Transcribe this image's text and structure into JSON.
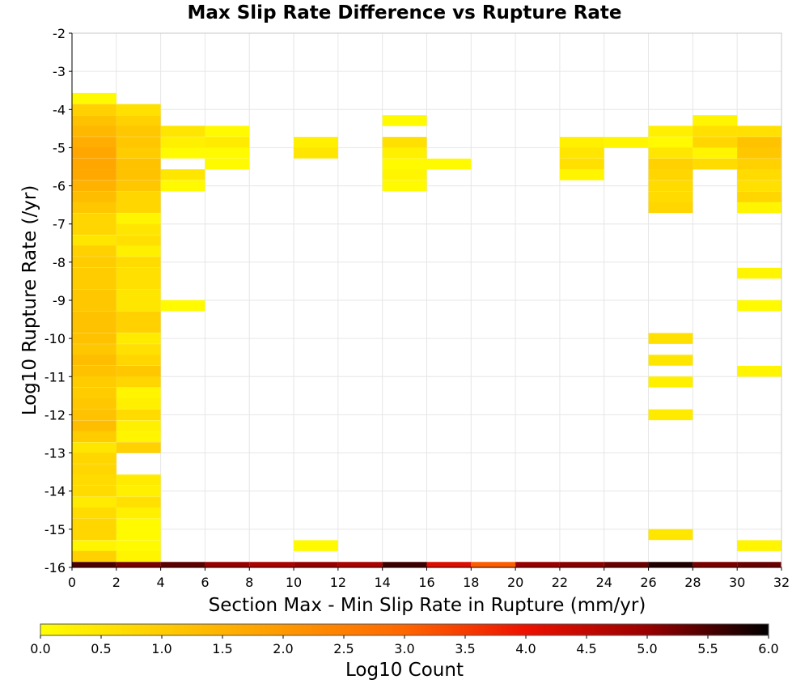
{
  "chart_data": {
    "type": "heatmap",
    "title": "Max Slip Rate Difference vs Rupture Rate",
    "xlabel": "Section Max - Min Slip Rate in Rupture (mm/yr)",
    "ylabel": "Log10 Rupture Rate (/yr)",
    "colorbar_label": "Log10 Count",
    "xlim": [
      0,
      32
    ],
    "ylim": [
      -16,
      -2
    ],
    "x_ticks": [
      "0",
      "2",
      "4",
      "6",
      "8",
      "10",
      "12",
      "14",
      "16",
      "18",
      "20",
      "22",
      "24",
      "26",
      "28",
      "30",
      "32"
    ],
    "y_ticks": [
      "-2",
      "-3",
      "-4",
      "-5",
      "-6",
      "-7",
      "-8",
      "-9",
      "-10",
      "-11",
      "-12",
      "-13",
      "-14",
      "-15",
      "-16"
    ],
    "colorbar_ticks": [
      "0.0",
      "0.5",
      "1.0",
      "1.5",
      "2.0",
      "2.5",
      "3.0",
      "3.5",
      "4.0",
      "4.5",
      "5.0",
      "5.5",
      "6.0"
    ],
    "colorbar_range": [
      0,
      6
    ],
    "colormap": [
      "#ffff00",
      "#ffcc00",
      "#ff9900",
      "#ff6600",
      "#ee1100",
      "#990000",
      "#000000"
    ],
    "grid": true,
    "bin_width": 2,
    "bin_height": 0.2857,
    "columns": [
      {
        "x": 1,
        "cells": [
          [
            -3.71,
            0.1
          ],
          [
            -4.0,
            0.9
          ],
          [
            -4.29,
            1.2
          ],
          [
            -4.57,
            1.4
          ],
          [
            -4.86,
            1.6
          ],
          [
            -5.14,
            1.75
          ],
          [
            -5.43,
            1.75
          ],
          [
            -5.71,
            1.7
          ],
          [
            -6.0,
            1.5
          ],
          [
            -6.29,
            1.3
          ],
          [
            -6.57,
            1.1
          ],
          [
            -6.86,
            0.8
          ],
          [
            -7.14,
            0.8
          ],
          [
            -7.43,
            0.5
          ],
          [
            -7.71,
            0.9
          ],
          [
            -8.0,
            1.0
          ],
          [
            -8.29,
            1.0
          ],
          [
            -8.57,
            1.0
          ],
          [
            -8.86,
            1.1
          ],
          [
            -9.14,
            1.1
          ],
          [
            -9.43,
            1.2
          ],
          [
            -9.71,
            1.2
          ],
          [
            -10.0,
            1.2
          ],
          [
            -10.29,
            1.1
          ],
          [
            -10.57,
            1.3
          ],
          [
            -10.86,
            1.2
          ],
          [
            -11.14,
            1.0
          ],
          [
            -11.43,
            1.0
          ],
          [
            -11.71,
            1.1
          ],
          [
            -12.0,
            1.2
          ],
          [
            -12.29,
            1.3
          ],
          [
            -12.57,
            1.0
          ],
          [
            -12.86,
            0.5
          ],
          [
            -13.14,
            0.8
          ],
          [
            -13.43,
            0.8
          ],
          [
            -13.71,
            0.7
          ],
          [
            -14.0,
            0.7
          ],
          [
            -14.29,
            0.4
          ],
          [
            -14.57,
            0.7
          ],
          [
            -14.86,
            0.8
          ],
          [
            -15.14,
            0.8
          ],
          [
            -15.43,
            0.2
          ],
          [
            -15.71,
            0.9
          ],
          [
            -16.0,
            5.5
          ]
        ]
      },
      {
        "x": 3,
        "cells": [
          [
            -4.0,
            0.6
          ],
          [
            -4.29,
            0.9
          ],
          [
            -4.57,
            1.1
          ],
          [
            -4.86,
            1.1
          ],
          [
            -5.14,
            1.0
          ],
          [
            -5.43,
            1.2
          ],
          [
            -5.71,
            1.2
          ],
          [
            -6.0,
            1.1
          ],
          [
            -6.29,
            0.8
          ],
          [
            -6.57,
            0.8
          ],
          [
            -6.86,
            0.2
          ],
          [
            -7.14,
            0.5
          ],
          [
            -7.43,
            0.6
          ],
          [
            -7.71,
            0.3
          ],
          [
            -8.0,
            0.7
          ],
          [
            -8.29,
            0.6
          ],
          [
            -8.57,
            0.6
          ],
          [
            -8.86,
            0.5
          ],
          [
            -9.14,
            0.5
          ],
          [
            -9.43,
            0.9
          ],
          [
            -9.71,
            0.9
          ],
          [
            -10.0,
            0.4
          ],
          [
            -10.29,
            0.6
          ],
          [
            -10.57,
            0.8
          ],
          [
            -10.86,
            1.1
          ],
          [
            -11.14,
            0.8
          ],
          [
            -11.43,
            0.2
          ],
          [
            -11.71,
            0.3
          ],
          [
            -12.0,
            0.7
          ],
          [
            -12.29,
            0.3
          ],
          [
            -12.57,
            0.2
          ],
          [
            -12.86,
            0.9
          ],
          [
            -13.71,
            0.4
          ],
          [
            -14.0,
            0.3
          ],
          [
            -14.29,
            0.6
          ],
          [
            -14.57,
            0.3
          ],
          [
            -14.86,
            0.1
          ],
          [
            -15.14,
            0.1
          ],
          [
            -15.43,
            0.1
          ],
          [
            -15.71,
            0.2
          ],
          [
            -16.0,
            5.2
          ]
        ]
      },
      {
        "x": 5,
        "cells": [
          [
            -4.57,
            0.5
          ],
          [
            -4.86,
            0.3
          ],
          [
            -5.14,
            0.1
          ],
          [
            -5.71,
            0.5
          ],
          [
            -6.0,
            0.1
          ],
          [
            -9.14,
            0.1
          ],
          [
            -16.0,
            5.4
          ]
        ]
      },
      {
        "x": 7,
        "cells": [
          [
            -4.57,
            0.1
          ],
          [
            -4.86,
            0.4
          ],
          [
            -5.14,
            0.1
          ],
          [
            -5.43,
            0.1
          ],
          [
            -16.0,
            5.0
          ]
        ]
      },
      {
        "x": 9,
        "cells": [
          [
            -16.0,
            4.8
          ]
        ]
      },
      {
        "x": 11,
        "cells": [
          [
            -4.86,
            0.3
          ],
          [
            -5.14,
            0.5
          ],
          [
            -15.43,
            0.1
          ],
          [
            -16.0,
            5.0
          ]
        ]
      },
      {
        "x": 13,
        "cells": [
          [
            -16.0,
            4.8
          ]
        ]
      },
      {
        "x": 15,
        "cells": [
          [
            -4.29,
            0.1
          ],
          [
            -4.86,
            0.6
          ],
          [
            -5.14,
            0.3
          ],
          [
            -5.43,
            0.1
          ],
          [
            -5.71,
            0.2
          ],
          [
            -6.0,
            0.1
          ],
          [
            -16.0,
            5.6
          ]
        ]
      },
      {
        "x": 17,
        "cells": [
          [
            -5.43,
            0.1
          ],
          [
            -16.0,
            4.2
          ]
        ]
      },
      {
        "x": 19,
        "cells": [
          [
            -16.0,
            3.1
          ]
        ]
      },
      {
        "x": 21,
        "cells": [
          [
            -16.0,
            5.0
          ]
        ]
      },
      {
        "x": 23,
        "cells": [
          [
            -4.86,
            0.3
          ],
          [
            -5.14,
            0.5
          ],
          [
            -5.43,
            0.6
          ],
          [
            -5.71,
            0.2
          ],
          [
            -16.0,
            5.1
          ]
        ]
      },
      {
        "x": 25,
        "cells": [
          [
            -4.86,
            0.2
          ],
          [
            -16.0,
            5.3
          ]
        ]
      },
      {
        "x": 27,
        "cells": [
          [
            -4.57,
            0.3
          ],
          [
            -4.86,
            0.1
          ],
          [
            -5.14,
            0.5
          ],
          [
            -5.43,
            0.9
          ],
          [
            -5.71,
            0.8
          ],
          [
            -6.0,
            0.7
          ],
          [
            -6.29,
            0.7
          ],
          [
            -6.57,
            0.8
          ],
          [
            -10.0,
            0.6
          ],
          [
            -10.57,
            0.5
          ],
          [
            -11.14,
            0.3
          ],
          [
            -12.0,
            0.4
          ],
          [
            -15.14,
            0.5
          ],
          [
            -16.0,
            5.8
          ]
        ]
      },
      {
        "x": 29,
        "cells": [
          [
            -4.29,
            0.2
          ],
          [
            -4.57,
            0.6
          ],
          [
            -4.86,
            0.8
          ],
          [
            -5.14,
            0.2
          ],
          [
            -5.43,
            0.7
          ],
          [
            -16.0,
            5.2
          ]
        ]
      },
      {
        "x": 31,
        "cells": [
          [
            -4.57,
            0.6
          ],
          [
            -4.86,
            1.2
          ],
          [
            -5.14,
            1.1
          ],
          [
            -5.43,
            0.9
          ],
          [
            -5.71,
            0.7
          ],
          [
            -6.0,
            0.6
          ],
          [
            -6.29,
            0.8
          ],
          [
            -6.57,
            0.2
          ],
          [
            -8.29,
            0.2
          ],
          [
            -9.14,
            0.1
          ],
          [
            -10.86,
            0.2
          ],
          [
            -15.43,
            0.2
          ],
          [
            -16.0,
            5.3
          ]
        ]
      }
    ]
  }
}
